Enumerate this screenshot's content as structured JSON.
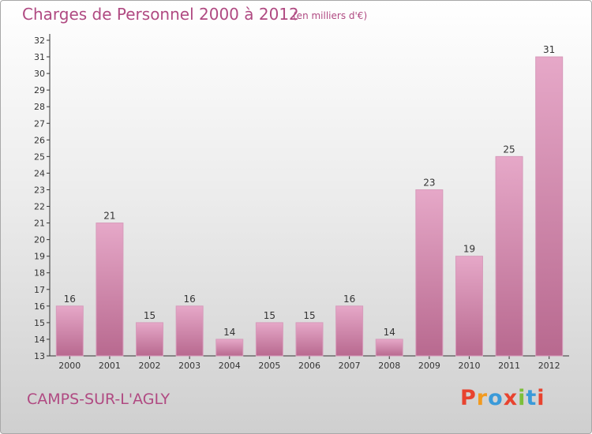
{
  "header": {
    "title": "Charges de Personnel 2000 à 2012",
    "subtitle": "(en milliers d'€)"
  },
  "footer": {
    "town": "CAMPS-SUR-L'AGLY",
    "logo_letters": [
      "P",
      "r",
      "o",
      "x",
      "i",
      "t",
      "i"
    ],
    "logo_colors": [
      "#e8432f",
      "#f29a1f",
      "#3a9ad9",
      "#e8432f",
      "#7cbf3a",
      "#3a9ad9",
      "#e8432f"
    ]
  },
  "chart_data": {
    "type": "bar",
    "categories": [
      "2000",
      "2001",
      "2002",
      "2003",
      "2004",
      "2005",
      "2006",
      "2007",
      "2008",
      "2009",
      "2010",
      "2011",
      "2012"
    ],
    "values": [
      16,
      21,
      15,
      16,
      14,
      15,
      15,
      16,
      14,
      23,
      19,
      25,
      31
    ],
    "ylim": [
      13,
      32
    ],
    "yticks": [
      13,
      14,
      15,
      16,
      17,
      18,
      19,
      20,
      21,
      22,
      23,
      24,
      25,
      26,
      27,
      28,
      29,
      30,
      31,
      32
    ],
    "grid": false,
    "bar_color": "#c7729f",
    "bar_highlight": "#e9a9cb"
  }
}
